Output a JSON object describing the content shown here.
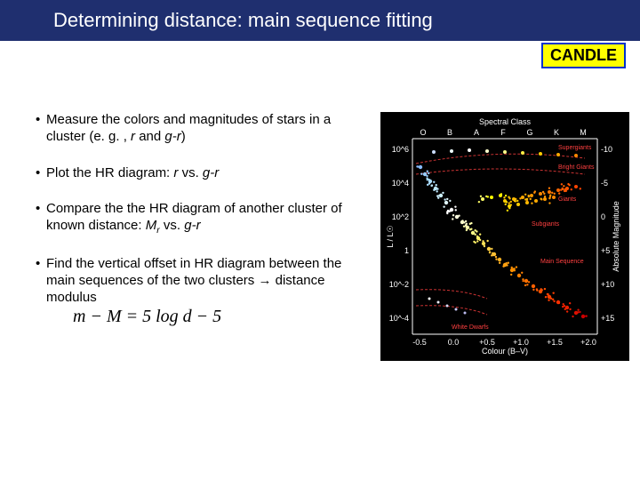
{
  "title": "Determining distance: main sequence fitting",
  "badge": "CANDLE",
  "bullets": [
    {
      "pre": "Measure the colors and magnitudes of stars in a cluster (e. g. , ",
      "it1": "r",
      "mid": " and ",
      "it2": "g-r",
      "post": ")"
    },
    {
      "pre": "Plot the HR diagram:  ",
      "it1": "r",
      "mid": "  vs.  ",
      "it2": "g-r",
      "post": ""
    },
    {
      "pre": "Compare the the HR diagram of another cluster of known distance:  ",
      "sub": "M",
      "subx": "r",
      "mid": "  vs.  ",
      "it2": "g-r",
      "post": ""
    },
    {
      "text": "Find the vertical offset in HR diagram between the main sequences of the two clusters → distance modulus"
    }
  ],
  "formula": "m − M = 5 log d − 5",
  "chart": {
    "bg": "#000000",
    "axis_color": "#ffffff",
    "x_label": "Colour (B–V)",
    "y_label_left": "L / L☉",
    "y_label_right": "Absolute Magnitude",
    "top_label": "Spectral Class",
    "spectral_classes": [
      "O",
      "B",
      "A",
      "F",
      "G",
      "K",
      "M"
    ],
    "y_left_ticks": [
      "10^6",
      "10^4",
      "10^2",
      "1",
      "10^-2",
      "10^-4"
    ],
    "y_right_ticks": [
      "-10",
      "-5",
      "0",
      "+5",
      "+10",
      "+15"
    ],
    "x_ticks": [
      "-0.5",
      "0.0",
      "+0.5",
      "+1.0",
      "+1.5",
      "+2.0"
    ],
    "regions": {
      "supergiants": {
        "label": "Supergiants",
        "color": "#ff4040"
      },
      "brightgiants": {
        "label": "Bright Giants",
        "color": "#ff4040"
      },
      "giants": {
        "label": "Giants",
        "color": "#ff4040"
      },
      "subgiants": {
        "label": "Subgiants",
        "color": "#ff4040"
      },
      "mainseq": {
        "label": "Main Sequence",
        "color": "#ff4040"
      },
      "whitedwarfs": {
        "label": "White Dwarfs",
        "color": "#ff4040"
      }
    },
    "ms_points": [
      {
        "x": 45,
        "y": 62,
        "c": "#88bbff"
      },
      {
        "x": 50,
        "y": 70,
        "c": "#99ccff"
      },
      {
        "x": 56,
        "y": 78,
        "c": "#aaddff"
      },
      {
        "x": 62,
        "y": 86,
        "c": "#bbe8ff"
      },
      {
        "x": 68,
        "y": 94,
        "c": "#ccf0ff"
      },
      {
        "x": 74,
        "y": 102,
        "c": "#e0f8ff"
      },
      {
        "x": 80,
        "y": 110,
        "c": "#ffffff"
      },
      {
        "x": 86,
        "y": 118,
        "c": "#ffffe0"
      },
      {
        "x": 92,
        "y": 124,
        "c": "#ffffcc"
      },
      {
        "x": 98,
        "y": 130,
        "c": "#ffffaa"
      },
      {
        "x": 104,
        "y": 136,
        "c": "#ffff88"
      },
      {
        "x": 110,
        "y": 142,
        "c": "#fff066"
      },
      {
        "x": 116,
        "y": 148,
        "c": "#ffe055"
      },
      {
        "x": 122,
        "y": 154,
        "c": "#ffd044"
      },
      {
        "x": 128,
        "y": 160,
        "c": "#ffc033"
      },
      {
        "x": 134,
        "y": 166,
        "c": "#ffb022"
      },
      {
        "x": 140,
        "y": 172,
        "c": "#ffa011"
      },
      {
        "x": 148,
        "y": 178,
        "c": "#ff9000"
      },
      {
        "x": 156,
        "y": 184,
        "c": "#ff8000"
      },
      {
        "x": 164,
        "y": 190,
        "c": "#ff7000"
      },
      {
        "x": 172,
        "y": 196,
        "c": "#ff6000"
      },
      {
        "x": 180,
        "y": 202,
        "c": "#ff5000"
      },
      {
        "x": 190,
        "y": 208,
        "c": "#ff4000"
      },
      {
        "x": 200,
        "y": 214,
        "c": "#ff3000"
      },
      {
        "x": 210,
        "y": 220,
        "c": "#ee2000"
      },
      {
        "x": 220,
        "y": 226,
        "c": "#dd1000"
      },
      {
        "x": 228,
        "y": 230,
        "c": "#cc0000"
      }
    ],
    "giants_points": [
      {
        "x": 140,
        "y": 100,
        "c": "#ffcc00"
      },
      {
        "x": 150,
        "y": 98,
        "c": "#ffbb00"
      },
      {
        "x": 160,
        "y": 96,
        "c": "#ffaa00"
      },
      {
        "x": 170,
        "y": 94,
        "c": "#ff9900"
      },
      {
        "x": 180,
        "y": 92,
        "c": "#ff8800"
      },
      {
        "x": 190,
        "y": 90,
        "c": "#ff7700"
      },
      {
        "x": 200,
        "y": 88,
        "c": "#ff6600"
      },
      {
        "x": 210,
        "y": 86,
        "c": "#ff5500"
      },
      {
        "x": 220,
        "y": 84,
        "c": "#ff4400"
      },
      {
        "x": 145,
        "y": 106,
        "c": "#ffdd00"
      },
      {
        "x": 155,
        "y": 104,
        "c": "#ffcc00"
      },
      {
        "x": 165,
        "y": 102,
        "c": "#ffbb00"
      },
      {
        "x": 175,
        "y": 100,
        "c": "#ffaa00"
      },
      {
        "x": 185,
        "y": 98,
        "c": "#ff9900"
      },
      {
        "x": 195,
        "y": 96,
        "c": "#ff8800"
      },
      {
        "x": 135,
        "y": 94,
        "c": "#ffee00"
      },
      {
        "x": 125,
        "y": 96,
        "c": "#ffff00"
      },
      {
        "x": 115,
        "y": 98,
        "c": "#ffff66"
      }
    ],
    "supergiants_points": [
      {
        "x": 60,
        "y": 45,
        "c": "#ccddff"
      },
      {
        "x": 80,
        "y": 44,
        "c": "#eeffff"
      },
      {
        "x": 100,
        "y": 43,
        "c": "#ffffff"
      },
      {
        "x": 120,
        "y": 44,
        "c": "#ffffcc"
      },
      {
        "x": 140,
        "y": 45,
        "c": "#ffff88"
      },
      {
        "x": 160,
        "y": 46,
        "c": "#ffee44"
      },
      {
        "x": 180,
        "y": 47,
        "c": "#ffcc00"
      },
      {
        "x": 200,
        "y": 48,
        "c": "#ffaa00"
      },
      {
        "x": 220,
        "y": 49,
        "c": "#ff8800"
      }
    ],
    "wd_points": [
      {
        "x": 55,
        "y": 210,
        "c": "#ffffff"
      },
      {
        "x": 65,
        "y": 214,
        "c": "#eeeeff"
      },
      {
        "x": 75,
        "y": 218,
        "c": "#ddddff"
      },
      {
        "x": 85,
        "y": 222,
        "c": "#ccccff"
      },
      {
        "x": 95,
        "y": 226,
        "c": "#bbbbee"
      }
    ],
    "boundary_curves": [
      "M 40 58 Q 130 40 230 52",
      "M 40 70 Q 130 58 230 70",
      "M 40 200 Q 90 198 120 210",
      "M 40 218 Q 90 216 120 228"
    ],
    "boundary_color": "#cc3333"
  }
}
